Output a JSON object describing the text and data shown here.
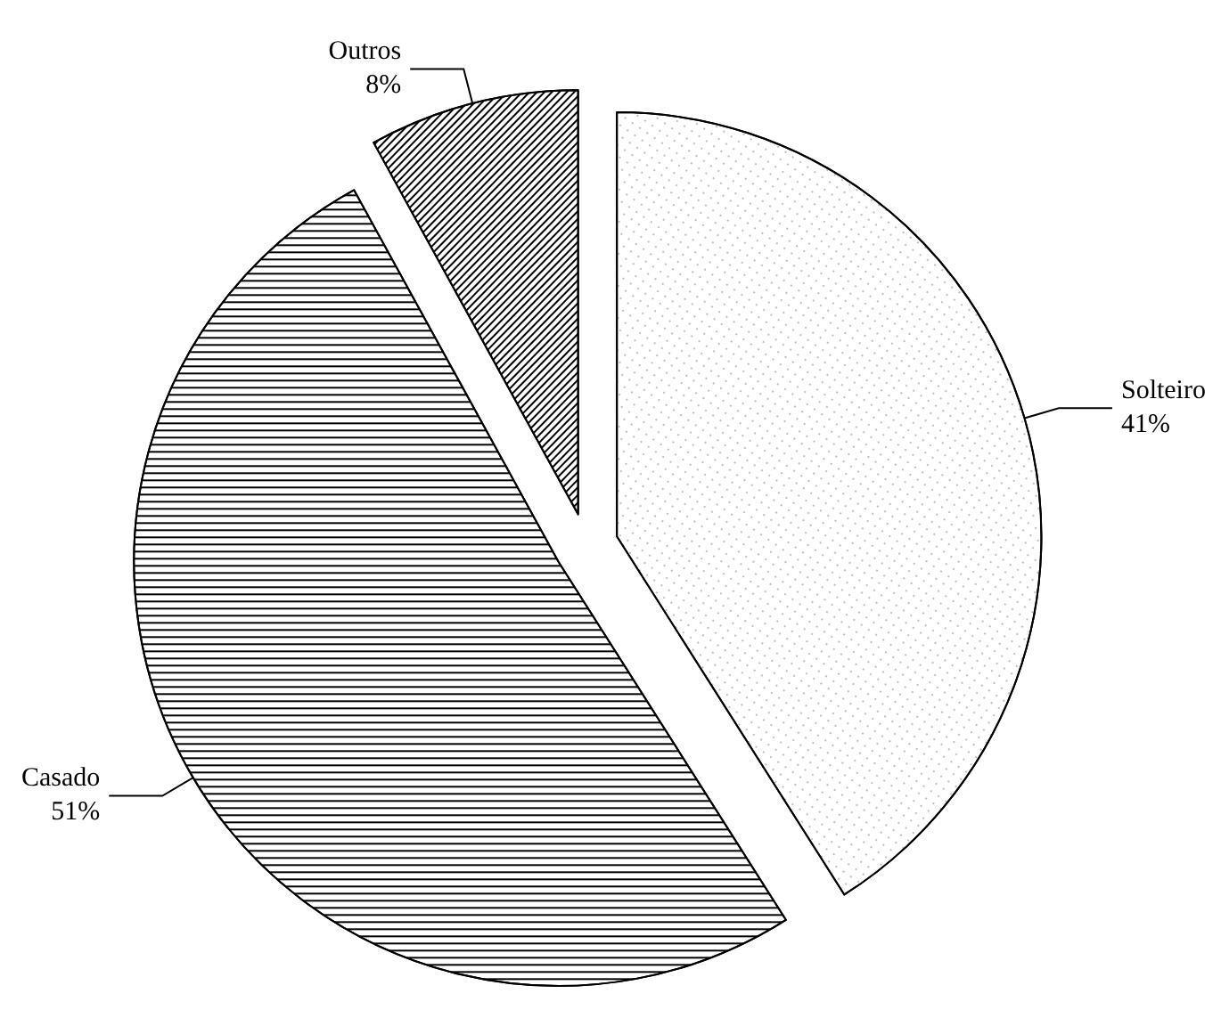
{
  "chart_data": {
    "type": "pie",
    "categories": [
      "Solteiro",
      "Casado",
      "Outros"
    ],
    "values": [
      41,
      51,
      8
    ],
    "value_labels": [
      "41%",
      "51%",
      "8%"
    ],
    "colors": [
      "#ffffff",
      "#ffffff",
      "#ffffff"
    ]
  }
}
